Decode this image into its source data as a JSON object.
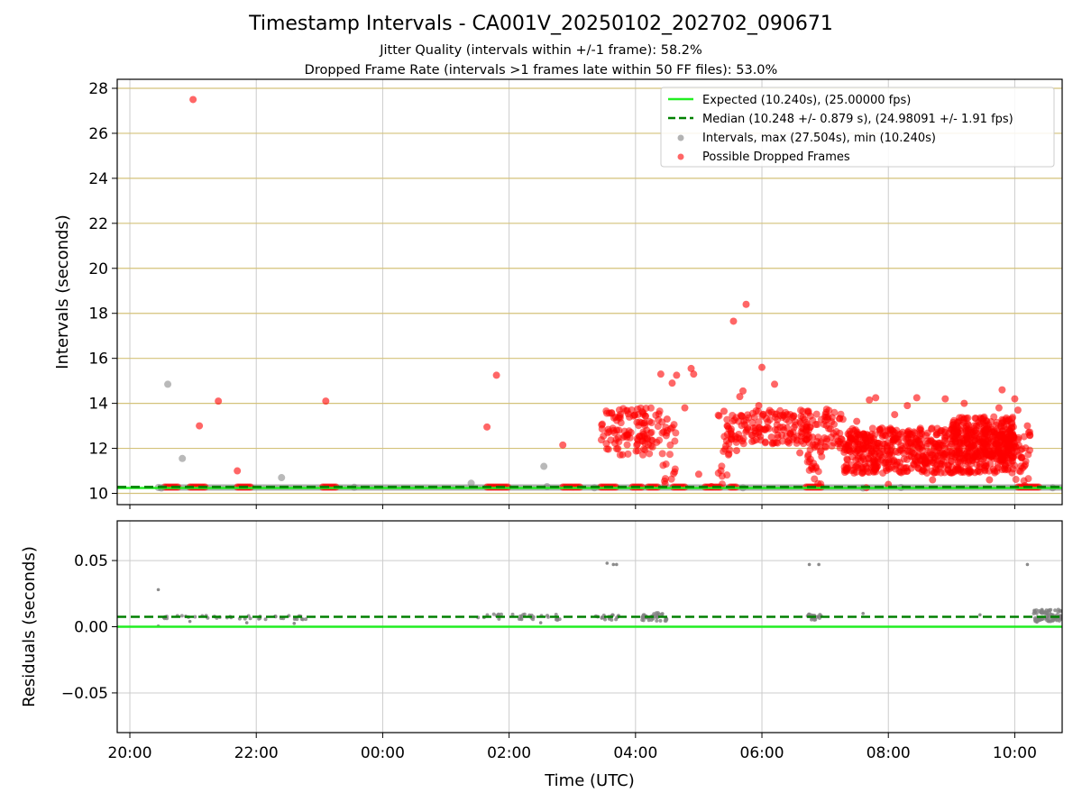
{
  "figure": {
    "title": "Timestamp Intervals - CA001V_20250102_202702_090671",
    "subtitle_1": "Jitter Quality (intervals within +/-1 frame): 58.2%",
    "subtitle_2": "Dropped Frame Rate (intervals >1 frames late within 50 FF files): 53.0%"
  },
  "colors": {
    "expected": "#22ee22",
    "median": "#008000",
    "intervals": "#808080",
    "dropped": "#ff0000",
    "grid_top": "#d4c27a",
    "grid": "#cccccc"
  },
  "chart_data": [
    {
      "type": "scatter",
      "panel": "intervals",
      "xlabel": "",
      "ylabel": "Intervals (seconds)",
      "x_unit": "hours since 20:00 UTC",
      "xlim": [
        -0.2,
        14.75
      ],
      "ylim": [
        9.5,
        28.4
      ],
      "y_ticks": [
        10,
        12,
        14,
        16,
        18,
        20,
        22,
        24,
        26,
        28
      ],
      "y_tick_labels": [
        "10",
        "12",
        "14",
        "16",
        "18",
        "20",
        "22",
        "24",
        "26",
        "28"
      ],
      "legend": {
        "placement": "top-right",
        "entries": [
          "Expected (10.240s), (25.00000 fps)",
          "Median (10.248 +/- 0.879 s), (24.98091 +/- 1.91 fps)",
          "Intervals, max (27.504s), min (10.240s)",
          "Possible Dropped Frames"
        ]
      },
      "expected_y": 10.24,
      "median_y": 10.248,
      "intervals_points": [
        [
          0.45,
          10.26
        ],
        [
          0.6,
          14.85
        ],
        [
          0.83,
          11.55
        ],
        [
          2.4,
          10.7
        ],
        [
          5.4,
          10.45
        ],
        [
          6.55,
          11.2
        ],
        [
          3.55,
          10.27
        ],
        [
          6.6,
          10.3
        ],
        [
          7.35,
          10.25
        ],
        [
          0.5,
          10.24
        ],
        [
          9.7,
          10.25
        ],
        [
          12.2,
          10.26
        ],
        [
          11.6,
          10.24
        ],
        [
          14.6,
          10.25
        ]
      ],
      "dropped_points": [
        [
          1.0,
          27.5
        ],
        [
          1.4,
          14.1
        ],
        [
          1.1,
          13.0
        ],
        [
          1.7,
          11.0
        ],
        [
          3.1,
          14.1
        ],
        [
          5.65,
          12.95
        ],
        [
          5.8,
          15.25
        ],
        [
          6.85,
          12.15
        ],
        [
          8.4,
          15.3
        ],
        [
          8.58,
          14.9
        ],
        [
          8.65,
          15.25
        ],
        [
          8.78,
          13.8
        ],
        [
          8.5,
          13.3
        ],
        [
          8.92,
          15.3
        ],
        [
          8.88,
          15.55
        ],
        [
          9.0,
          10.85
        ],
        [
          9.2,
          10.3
        ],
        [
          9.4,
          13.65
        ],
        [
          9.45,
          13.0
        ],
        [
          9.6,
          11.9
        ],
        [
          9.65,
          14.3
        ],
        [
          9.7,
          14.55
        ],
        [
          9.75,
          18.4
        ],
        [
          9.55,
          17.65
        ],
        [
          9.95,
          13.9
        ],
        [
          10.0,
          15.6
        ],
        [
          10.2,
          14.85
        ],
        [
          10.15,
          12.5
        ],
        [
          10.4,
          13.5
        ],
        [
          10.6,
          11.8
        ],
        [
          10.8,
          12.5
        ],
        [
          11.0,
          13.4
        ],
        [
          11.3,
          12.2
        ],
        [
          11.5,
          13.2
        ],
        [
          11.7,
          14.15
        ],
        [
          11.8,
          14.25
        ],
        [
          12.1,
          13.5
        ],
        [
          12.3,
          13.9
        ],
        [
          12.45,
          14.25
        ],
        [
          12.9,
          14.2
        ],
        [
          13.2,
          14.0
        ],
        [
          13.45,
          11.3
        ],
        [
          12.0,
          10.4
        ],
        [
          11.65,
          10.25
        ],
        [
          13.75,
          13.8
        ],
        [
          13.95,
          12.9
        ],
        [
          13.8,
          14.6
        ],
        [
          14.0,
          14.2
        ],
        [
          14.05,
          13.7
        ],
        [
          14.2,
          13.0
        ],
        [
          14.15,
          11.2
        ],
        [
          13.0,
          12.2
        ],
        [
          12.7,
          10.6
        ],
        [
          13.6,
          10.6
        ],
        [
          11.9,
          12.9
        ]
      ],
      "dropped_segments": [
        [
          0.55,
          0.78
        ],
        [
          0.95,
          1.2
        ],
        [
          1.7,
          1.92
        ],
        [
          3.05,
          3.28
        ],
        [
          5.65,
          6.0
        ],
        [
          6.85,
          7.15
        ],
        [
          7.45,
          7.7
        ],
        [
          7.95,
          8.1
        ],
        [
          8.2,
          8.35
        ],
        [
          8.6,
          8.8
        ],
        [
          9.1,
          9.35
        ],
        [
          9.5,
          9.6
        ],
        [
          10.7,
          10.95
        ],
        [
          14.05,
          14.4
        ]
      ],
      "dropped_bands": [
        {
          "x_range": [
            7.45,
            8.45
          ],
          "y_range": [
            11.7,
            13.8
          ],
          "count": 120
        },
        {
          "x_range": [
            8.42,
            8.68
          ],
          "y_range": [
            10.3,
            13.2
          ],
          "count": 20
        },
        {
          "x_range": [
            9.3,
            9.52
          ],
          "y_range": [
            10.4,
            13.5
          ],
          "count": 24
        },
        {
          "x_range": [
            9.5,
            10.75
          ],
          "y_range": [
            12.2,
            13.7
          ],
          "count": 140
        },
        {
          "x_range": [
            10.7,
            10.95
          ],
          "y_range": [
            10.3,
            12.4
          ],
          "count": 24
        },
        {
          "x_range": [
            10.7,
            11.3
          ],
          "y_range": [
            12.0,
            13.8
          ],
          "count": 60
        },
        {
          "x_range": [
            11.3,
            14.0
          ],
          "y_range": [
            10.9,
            12.9
          ],
          "count": 700
        },
        {
          "x_range": [
            13.0,
            14.0
          ],
          "y_range": [
            11.6,
            13.4
          ],
          "count": 200
        },
        {
          "x_range": [
            14.0,
            14.25
          ],
          "y_range": [
            10.3,
            12.8
          ],
          "count": 30
        }
      ]
    },
    {
      "type": "scatter",
      "panel": "residuals",
      "xlabel": "Time (UTC)",
      "ylabel": "Residuals (seconds)",
      "x_unit": "hours since 20:00 UTC",
      "xlim": [
        -0.2,
        14.75
      ],
      "ylim": [
        -0.08,
        0.08
      ],
      "y_ticks": [
        -0.05,
        0,
        0.05
      ],
      "y_tick_labels": [
        "−0.05",
        "0.00",
        "0.05"
      ],
      "x_ticks": [
        0,
        2,
        4,
        6,
        8,
        10,
        12,
        14
      ],
      "x_tick_labels": [
        "20:00",
        "22:00",
        "00:00",
        "02:00",
        "04:00",
        "06:00",
        "08:00",
        "10:00"
      ],
      "expected_y": 0.0,
      "median_y": 0.0075,
      "residual_points": [
        [
          0.45,
          0.028
        ],
        [
          0.45,
          0.0005
        ],
        [
          7.55,
          0.048
        ],
        [
          7.65,
          0.047
        ],
        [
          7.7,
          0.047
        ],
        [
          10.75,
          0.047
        ],
        [
          10.9,
          0.047
        ],
        [
          14.2,
          0.047
        ],
        [
          11.6,
          0.01
        ],
        [
          13.45,
          0.009
        ],
        [
          14.35,
          0.0035
        ],
        [
          2.6,
          0.0025
        ],
        [
          1.85,
          0.003
        ],
        [
          0.95,
          0.004
        ],
        [
          6.5,
          0.003
        ]
      ],
      "residual_bands": [
        {
          "x_range": [
            0.5,
            2.8
          ],
          "y_range": [
            0.0055,
            0.0085
          ],
          "count": 40
        },
        [
          3.0,
          3.3
        ],
        {
          "x_range": [
            5.5,
            6.8
          ],
          "y_range": [
            0.005,
            0.0095
          ],
          "count": 30
        },
        {
          "x_range": [
            7.3,
            7.8
          ],
          "y_range": [
            0.005,
            0.009
          ],
          "count": 20
        },
        {
          "x_range": [
            8.1,
            8.5
          ],
          "y_range": [
            0.0045,
            0.0105
          ],
          "count": 40
        },
        {
          "x_range": [
            10.7,
            10.95
          ],
          "y_range": [
            0.005,
            0.0095
          ],
          "count": 20
        },
        {
          "x_range": [
            14.3,
            14.75
          ],
          "y_range": [
            0.004,
            0.013
          ],
          "count": 80
        }
      ]
    }
  ]
}
